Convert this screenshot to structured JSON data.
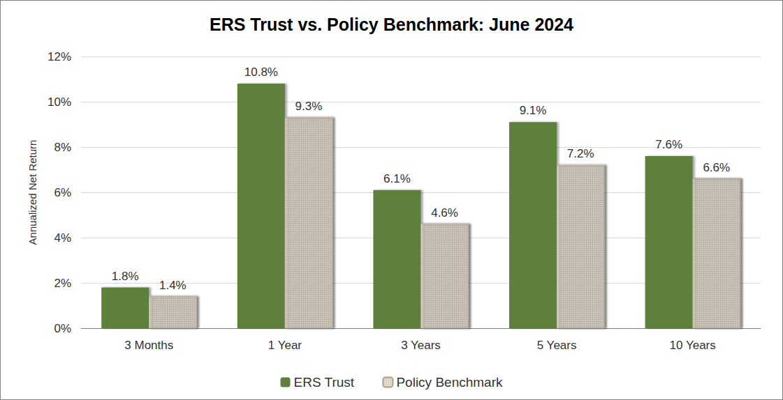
{
  "chart_data": {
    "type": "bar",
    "title": "ERS Trust vs. Policy Benchmark: June 2024",
    "y_label": "Annualized Net Return",
    "categories": [
      "3 Months",
      "1 Year",
      "3 Years",
      "5 Years",
      "10 Years"
    ],
    "series": [
      {
        "name": "ERS Trust",
        "color": "#5f7f3e",
        "values": [
          1.8,
          10.8,
          6.1,
          9.1,
          7.6
        ],
        "value_labels": [
          "1.8%",
          "10.8%",
          "6.1%",
          "9.1%",
          "7.6%"
        ]
      },
      {
        "name": "Policy Benchmark",
        "color": "#efe9e1",
        "values": [
          1.4,
          9.3,
          4.6,
          7.2,
          6.6
        ],
        "value_labels": [
          "1.4%",
          "9.3%",
          "4.6%",
          "7.2%",
          "6.6%"
        ]
      }
    ],
    "ylim": [
      0,
      12
    ],
    "yticks": [
      {
        "value": 0,
        "label": "0%"
      },
      {
        "value": 2,
        "label": "2%"
      },
      {
        "value": 4,
        "label": "4%"
      },
      {
        "value": 6,
        "label": "6%"
      },
      {
        "value": 8,
        "label": "8%"
      },
      {
        "value": 10,
        "label": "10%"
      },
      {
        "value": 12,
        "label": "12%"
      }
    ],
    "grid": true,
    "legend": "bottom",
    "data_labels": true
  }
}
